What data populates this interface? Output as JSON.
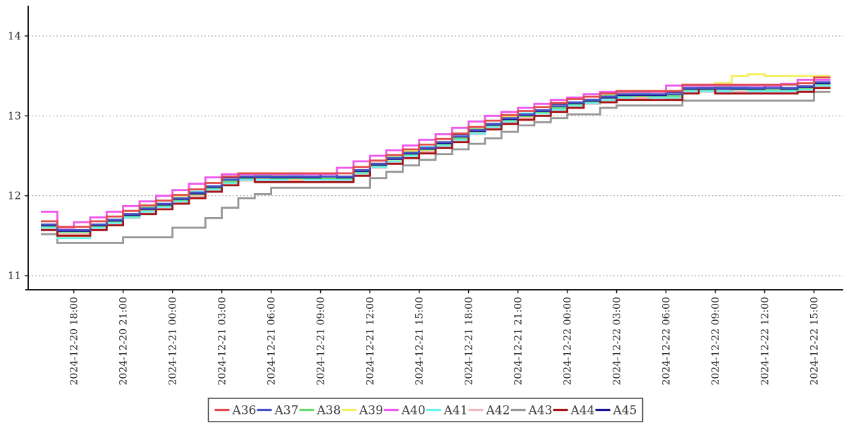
{
  "chart_data": {
    "type": "line",
    "step": "post",
    "title": "",
    "xlabel": "",
    "ylabel": "",
    "grid": "horizontal-dotted",
    "legend_position": "bottom-center",
    "y_ticks": [
      11,
      12,
      13,
      14
    ],
    "ylim": [
      10.82,
      14.38
    ],
    "x_start": "2024-12-20 16:00",
    "x_hours_total": 48,
    "x_tick_hours": [
      2,
      5,
      8,
      11,
      14,
      17,
      20,
      23,
      26,
      29,
      32,
      35,
      38,
      41,
      44,
      47
    ],
    "x_tick_labels": [
      "2024-12-20 18:00",
      "2024-12-20 21:00",
      "2024-12-21 00:00",
      "2024-12-21 03:00",
      "2024-12-21 06:00",
      "2024-12-21 09:00",
      "2024-12-21 12:00",
      "2024-12-21 15:00",
      "2024-12-21 18:00",
      "2024-12-21 21:00",
      "2024-12-22 00:00",
      "2024-12-22 03:00",
      "2024-12-22 06:00",
      "2024-12-22 09:00",
      "2024-12-22 12:00",
      "2024-12-22 15:00"
    ],
    "z_order": [
      "A43",
      "A39",
      "A42",
      "A41",
      "A38",
      "A45",
      "A44",
      "A40",
      "A37",
      "A36"
    ],
    "series": [
      {
        "name": "A36",
        "color": "#e04b4b",
        "values": [
          11.68,
          11.61,
          11.61,
          11.68,
          11.74,
          11.81,
          11.88,
          11.94,
          12.01,
          12.08,
          12.16,
          12.24,
          12.28,
          12.28,
          12.28,
          12.28,
          12.28,
          12.28,
          12.28,
          12.36,
          12.44,
          12.51,
          12.58,
          12.64,
          12.71,
          12.78,
          12.86,
          12.94,
          13.01,
          13.06,
          13.11,
          13.16,
          13.21,
          13.24,
          13.28,
          13.31,
          13.31,
          13.31,
          13.31,
          13.39,
          13.39,
          13.39,
          13.39,
          13.39,
          13.39,
          13.39,
          13.41,
          13.48,
          13.48
        ]
      },
      {
        "name": "A37",
        "color": "#4653c4",
        "values": [
          11.64,
          11.57,
          11.57,
          11.64,
          11.7,
          11.77,
          11.84,
          11.9,
          11.97,
          12.04,
          12.12,
          12.2,
          12.24,
          12.24,
          12.24,
          12.24,
          12.24,
          12.24,
          12.24,
          12.32,
          12.4,
          12.47,
          12.54,
          12.6,
          12.67,
          12.74,
          12.82,
          12.9,
          12.97,
          13.02,
          13.07,
          13.12,
          13.17,
          13.2,
          13.24,
          13.27,
          13.27,
          13.27,
          13.27,
          13.35,
          13.35,
          13.35,
          13.35,
          13.35,
          13.35,
          13.35,
          13.37,
          13.42,
          13.42
        ]
      },
      {
        "name": "A38",
        "color": "#64dd6e",
        "values": [
          11.62,
          11.55,
          11.55,
          11.62,
          11.68,
          11.75,
          11.85,
          11.88,
          11.95,
          12.02,
          12.1,
          12.18,
          12.22,
          12.25,
          12.22,
          12.22,
          12.22,
          12.22,
          12.22,
          12.3,
          12.38,
          12.48,
          12.52,
          12.58,
          12.65,
          12.72,
          12.83,
          12.88,
          12.95,
          13.0,
          13.05,
          13.1,
          13.15,
          13.18,
          13.25,
          13.25,
          13.25,
          13.25,
          13.25,
          13.33,
          13.33,
          13.36,
          13.33,
          13.33,
          13.33,
          13.33,
          13.35,
          13.4,
          13.4
        ]
      },
      {
        "name": "A39",
        "color": "#f5ef62",
        "values": [
          11.61,
          11.48,
          11.48,
          11.61,
          11.67,
          11.74,
          11.81,
          11.87,
          12.0,
          12.01,
          12.09,
          12.17,
          12.21,
          12.21,
          12.26,
          12.21,
          12.21,
          12.21,
          12.21,
          12.29,
          12.37,
          12.44,
          12.56,
          12.57,
          12.64,
          12.71,
          12.79,
          12.87,
          12.99,
          12.99,
          13.04,
          13.09,
          13.14,
          13.17,
          13.21,
          13.29,
          13.24,
          13.24,
          13.24,
          13.32,
          13.32,
          13.41,
          13.5,
          13.52,
          13.5,
          13.5,
          13.5,
          13.5,
          13.5
        ]
      },
      {
        "name": "A40",
        "color": "#ee58ee",
        "values": [
          11.8,
          11.6,
          11.67,
          11.73,
          11.8,
          11.87,
          11.93,
          12.0,
          12.07,
          12.15,
          12.23,
          12.27,
          12.27,
          12.27,
          12.27,
          12.27,
          12.27,
          12.27,
          12.35,
          12.43,
          12.5,
          12.57,
          12.63,
          12.7,
          12.77,
          12.85,
          12.93,
          13.0,
          13.05,
          13.1,
          13.15,
          13.2,
          13.23,
          13.27,
          13.3,
          13.3,
          13.3,
          13.3,
          13.38,
          13.38,
          13.38,
          13.38,
          13.38,
          13.38,
          13.38,
          13.4,
          13.45,
          13.45,
          13.45
        ]
      },
      {
        "name": "A41",
        "color": "#6eeff0",
        "values": [
          11.6,
          11.47,
          11.47,
          11.6,
          11.66,
          11.73,
          11.8,
          11.86,
          11.93,
          12.05,
          12.08,
          12.16,
          12.2,
          12.2,
          12.2,
          12.25,
          12.2,
          12.2,
          12.2,
          12.28,
          12.36,
          12.43,
          12.5,
          12.61,
          12.63,
          12.7,
          12.78,
          12.86,
          12.93,
          13.03,
          13.03,
          13.08,
          13.13,
          13.16,
          13.2,
          13.23,
          13.28,
          13.23,
          13.23,
          13.31,
          13.31,
          13.31,
          13.36,
          13.31,
          13.31,
          13.31,
          13.33,
          13.38,
          13.38
        ]
      },
      {
        "name": "A42",
        "color": "#f4b8ba",
        "values": [
          11.59,
          11.52,
          11.52,
          11.59,
          11.65,
          11.72,
          11.79,
          11.89,
          11.92,
          11.99,
          12.07,
          12.15,
          12.19,
          12.19,
          12.19,
          12.19,
          12.23,
          12.19,
          12.19,
          12.27,
          12.35,
          12.42,
          12.49,
          12.55,
          12.66,
          12.69,
          12.77,
          12.85,
          12.92,
          12.97,
          13.06,
          13.07,
          13.12,
          13.15,
          13.19,
          13.22,
          13.22,
          13.26,
          13.22,
          13.3,
          13.3,
          13.3,
          13.3,
          13.3,
          13.3,
          13.3,
          13.32,
          13.37,
          13.37
        ]
      },
      {
        "name": "A43",
        "color": "#979797",
        "values": [
          11.52,
          11.41,
          11.41,
          11.41,
          11.41,
          11.48,
          11.48,
          11.48,
          11.6,
          11.6,
          11.72,
          11.85,
          11.97,
          12.02,
          12.1,
          12.1,
          12.1,
          12.1,
          12.1,
          12.1,
          12.22,
          12.3,
          12.38,
          12.45,
          12.52,
          12.58,
          12.65,
          12.72,
          12.8,
          12.88,
          12.92,
          12.97,
          13.02,
          13.02,
          13.1,
          13.13,
          13.13,
          13.13,
          13.13,
          13.19,
          13.19,
          13.19,
          13.19,
          13.19,
          13.19,
          13.19,
          13.19,
          13.3,
          13.3
        ]
      },
      {
        "name": "A44",
        "color": "#a31317",
        "values": [
          11.57,
          11.5,
          11.5,
          11.57,
          11.63,
          11.77,
          11.77,
          11.83,
          11.9,
          11.97,
          12.05,
          12.13,
          12.24,
          12.17,
          12.17,
          12.17,
          12.17,
          12.17,
          12.17,
          12.25,
          12.4,
          12.4,
          12.47,
          12.53,
          12.6,
          12.67,
          12.82,
          12.83,
          12.9,
          12.95,
          13.0,
          13.05,
          13.1,
          13.2,
          13.17,
          13.2,
          13.2,
          13.2,
          13.2,
          13.28,
          13.35,
          13.28,
          13.28,
          13.28,
          13.28,
          13.28,
          13.3,
          13.35,
          13.35
        ]
      },
      {
        "name": "A45",
        "color": "#14148e",
        "values": [
          11.63,
          11.56,
          11.56,
          11.63,
          11.69,
          11.76,
          11.83,
          11.89,
          11.96,
          12.03,
          12.11,
          12.23,
          12.23,
          12.23,
          12.23,
          12.23,
          12.23,
          12.27,
          12.23,
          12.31,
          12.39,
          12.46,
          12.53,
          12.59,
          12.66,
          12.77,
          12.81,
          12.89,
          12.96,
          13.01,
          13.06,
          13.15,
          13.16,
          13.19,
          13.23,
          13.26,
          13.26,
          13.26,
          13.3,
          13.34,
          13.34,
          13.34,
          13.34,
          13.34,
          13.38,
          13.34,
          13.36,
          13.41,
          13.41
        ]
      }
    ],
    "colors": {
      "axis": "#1a1a1a",
      "grid": "#999999",
      "tick_text": "#262626",
      "legend_border": "#444444",
      "background": "#ffffff"
    }
  }
}
